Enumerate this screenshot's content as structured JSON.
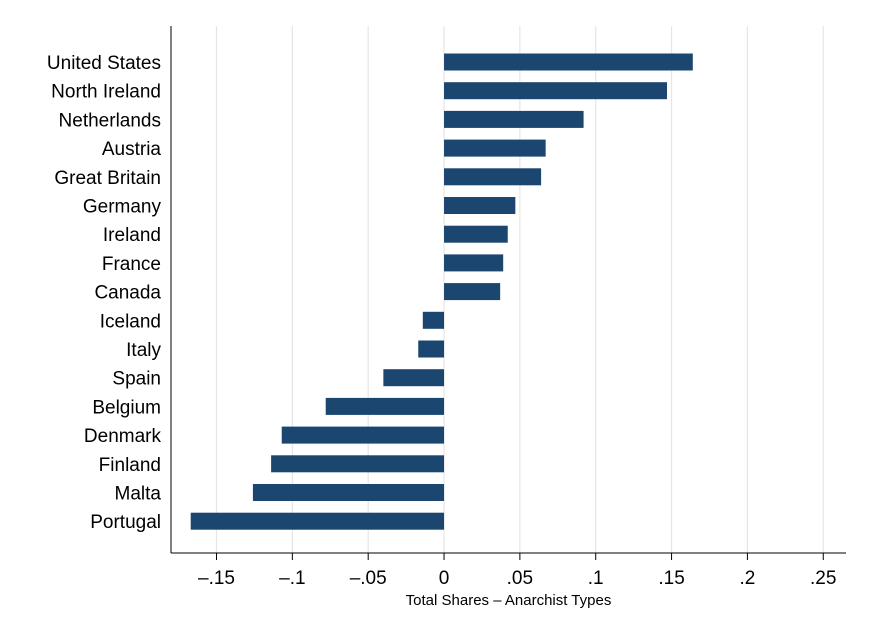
{
  "chart_data": {
    "type": "bar",
    "orientation": "horizontal",
    "title": "",
    "xlabel": "Total Shares – Anarchist Types",
    "ylabel": "",
    "categories": [
      "United States",
      "North Ireland",
      "Netherlands",
      "Austria",
      "Great Britain",
      "Germany",
      "Ireland",
      "France",
      "Canada",
      "Iceland",
      "Italy",
      "Spain",
      "Belgium",
      "Denmark",
      "Finland",
      "Malta",
      "Portugal"
    ],
    "values": [
      0.164,
      0.147,
      0.092,
      0.067,
      0.064,
      0.047,
      0.042,
      0.039,
      0.037,
      -0.014,
      -0.017,
      -0.04,
      -0.078,
      -0.107,
      -0.114,
      -0.126,
      -0.167
    ],
    "xlim": [
      -0.18,
      0.265
    ],
    "xticks": [
      -0.15,
      -0.1,
      -0.05,
      0,
      0.05,
      0.1,
      0.15,
      0.2,
      0.25
    ],
    "xtick_labels": [
      "–.15",
      "–.1",
      "–.05",
      "0",
      ".05",
      ".1",
      ".15",
      ".2",
      ".25"
    ],
    "grid": true,
    "legend": "none",
    "bar_color": "#1a4670",
    "grid_color": "#e6e6e6"
  }
}
